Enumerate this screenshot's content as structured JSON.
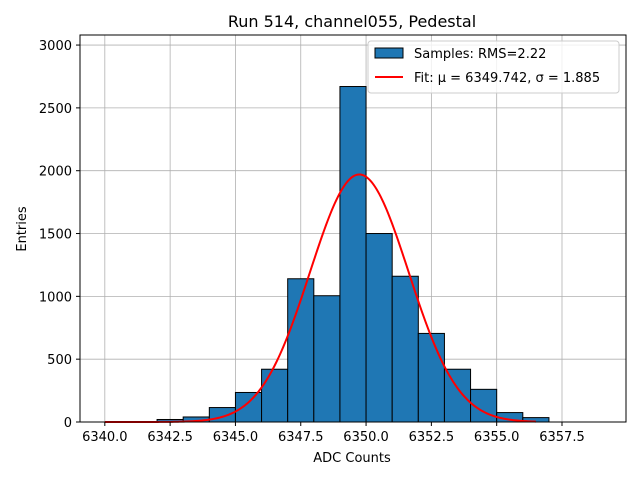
{
  "chart_data": {
    "type": "bar",
    "title": "Run 514, channel055, Pedestal",
    "xlabel": "ADC Counts",
    "ylabel": "Entries",
    "xlim": [
      6339.05,
      6359.95
    ],
    "ylim": [
      0,
      3080
    ],
    "grid": true,
    "legend_position": "top-right",
    "x_ticks": [
      6340.0,
      6342.5,
      6345.0,
      6347.5,
      6350.0,
      6352.5,
      6355.0,
      6357.5
    ],
    "x_tick_labels": [
      "6340.0",
      "6342.5",
      "6345.0",
      "6347.5",
      "6350.0",
      "6352.5",
      "6355.0",
      "6357.5"
    ],
    "y_ticks": [
      0,
      500,
      1000,
      1500,
      2000,
      2500,
      3000
    ],
    "y_tick_labels": [
      "0",
      "500",
      "1000",
      "1500",
      "2000",
      "2500",
      "3000"
    ],
    "histogram": {
      "name": "Samples: RMS=2.22",
      "bin_edges": [
        6340,
        6341,
        6342,
        6343,
        6344,
        6345,
        6346,
        6347,
        6348,
        6349,
        6350,
        6351,
        6352,
        6353,
        6354,
        6355,
        6356,
        6357,
        6358,
        6359
      ],
      "counts": [
        0,
        0,
        20,
        40,
        115,
        235,
        420,
        1140,
        1005,
        2670,
        1500,
        1160,
        705,
        420,
        260,
        75,
        35,
        0,
        0
      ],
      "color": "#1f77b4",
      "edge_color": "#000000"
    },
    "fit": {
      "name": "Fit: μ = 6349.742, σ = 1.885",
      "mu": 6349.742,
      "sigma": 1.885,
      "amplitude": 1970,
      "x_range": [
        6340,
        6356.5
      ],
      "color": "#ff0000"
    }
  }
}
